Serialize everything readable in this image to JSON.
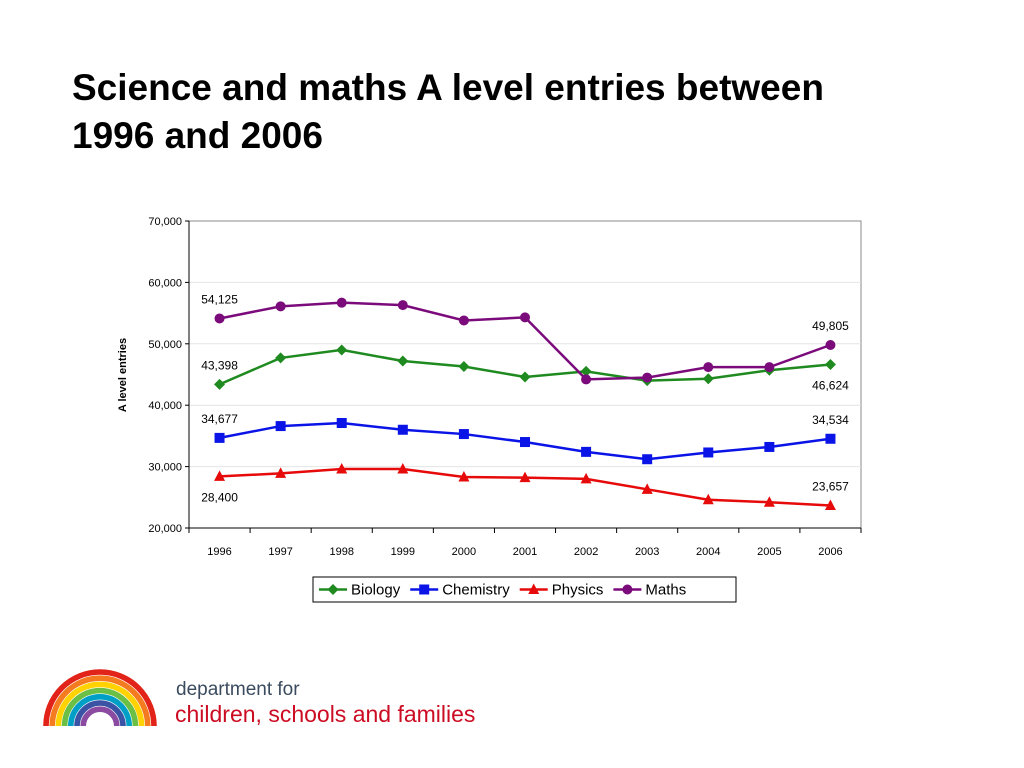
{
  "title_lines": [
    "Science and maths A level entries between",
    "1996 and 2006"
  ],
  "chart_data": {
    "type": "line",
    "x": [
      "1996",
      "1997",
      "1998",
      "1999",
      "2000",
      "2001",
      "2002",
      "2003",
      "2004",
      "2005",
      "2006"
    ],
    "ylabel": "A level entries",
    "ylim": [
      20000,
      70000
    ],
    "yticks": [
      "20,000",
      "30,000",
      "40,000",
      "50,000",
      "60,000",
      "70,000"
    ],
    "yticks_values": [
      20000,
      30000,
      40000,
      50000,
      60000,
      70000
    ],
    "grid": true,
    "legend_position": "bottom",
    "series": [
      {
        "name": "Biology",
        "color": "#1f8a1f",
        "marker": "diamond",
        "values": [
          43398,
          47700,
          49000,
          47200,
          46300,
          44600,
          45500,
          44000,
          44300,
          45700,
          46624
        ]
      },
      {
        "name": "Chemistry",
        "color": "#0a14e6",
        "marker": "square",
        "values": [
          34677,
          36600,
          37100,
          36000,
          35300,
          34000,
          32400,
          31200,
          32300,
          33200,
          34534
        ]
      },
      {
        "name": "Physics",
        "color": "#e60a0a",
        "marker": "triangle",
        "values": [
          28400,
          28900,
          29600,
          29600,
          28300,
          28200,
          28000,
          26300,
          24600,
          24200,
          23657
        ]
      },
      {
        "name": "Maths",
        "color": "#7b0a7b",
        "marker": "circle",
        "values": [
          54125,
          56100,
          56700,
          56300,
          53800,
          54300,
          44200,
          44500,
          46200,
          46200,
          49805
        ]
      }
    ],
    "annotations": [
      {
        "text": "54,125",
        "series": "Maths",
        "index": 0,
        "side": "above"
      },
      {
        "text": "49,805",
        "series": "Maths",
        "index": 10,
        "side": "above"
      },
      {
        "text": "43,398",
        "series": "Biology",
        "index": 0,
        "side": "above"
      },
      {
        "text": "46,624",
        "series": "Biology",
        "index": 10,
        "side": "below"
      },
      {
        "text": "34,677",
        "series": "Chemistry",
        "index": 0,
        "side": "above"
      },
      {
        "text": "34,534",
        "series": "Chemistry",
        "index": 10,
        "side": "above"
      },
      {
        "text": "28,400",
        "series": "Physics",
        "index": 0,
        "side": "below"
      },
      {
        "text": "23,657",
        "series": "Physics",
        "index": 10,
        "side": "above"
      }
    ]
  },
  "logo": {
    "line1": "department for",
    "line2": "children, schools and families",
    "rainbow_colors": [
      "#e2231a",
      "#f47b20",
      "#ffd200",
      "#6bbf45",
      "#00a0c6",
      "#3a53a4",
      "#8a4ba0"
    ]
  }
}
